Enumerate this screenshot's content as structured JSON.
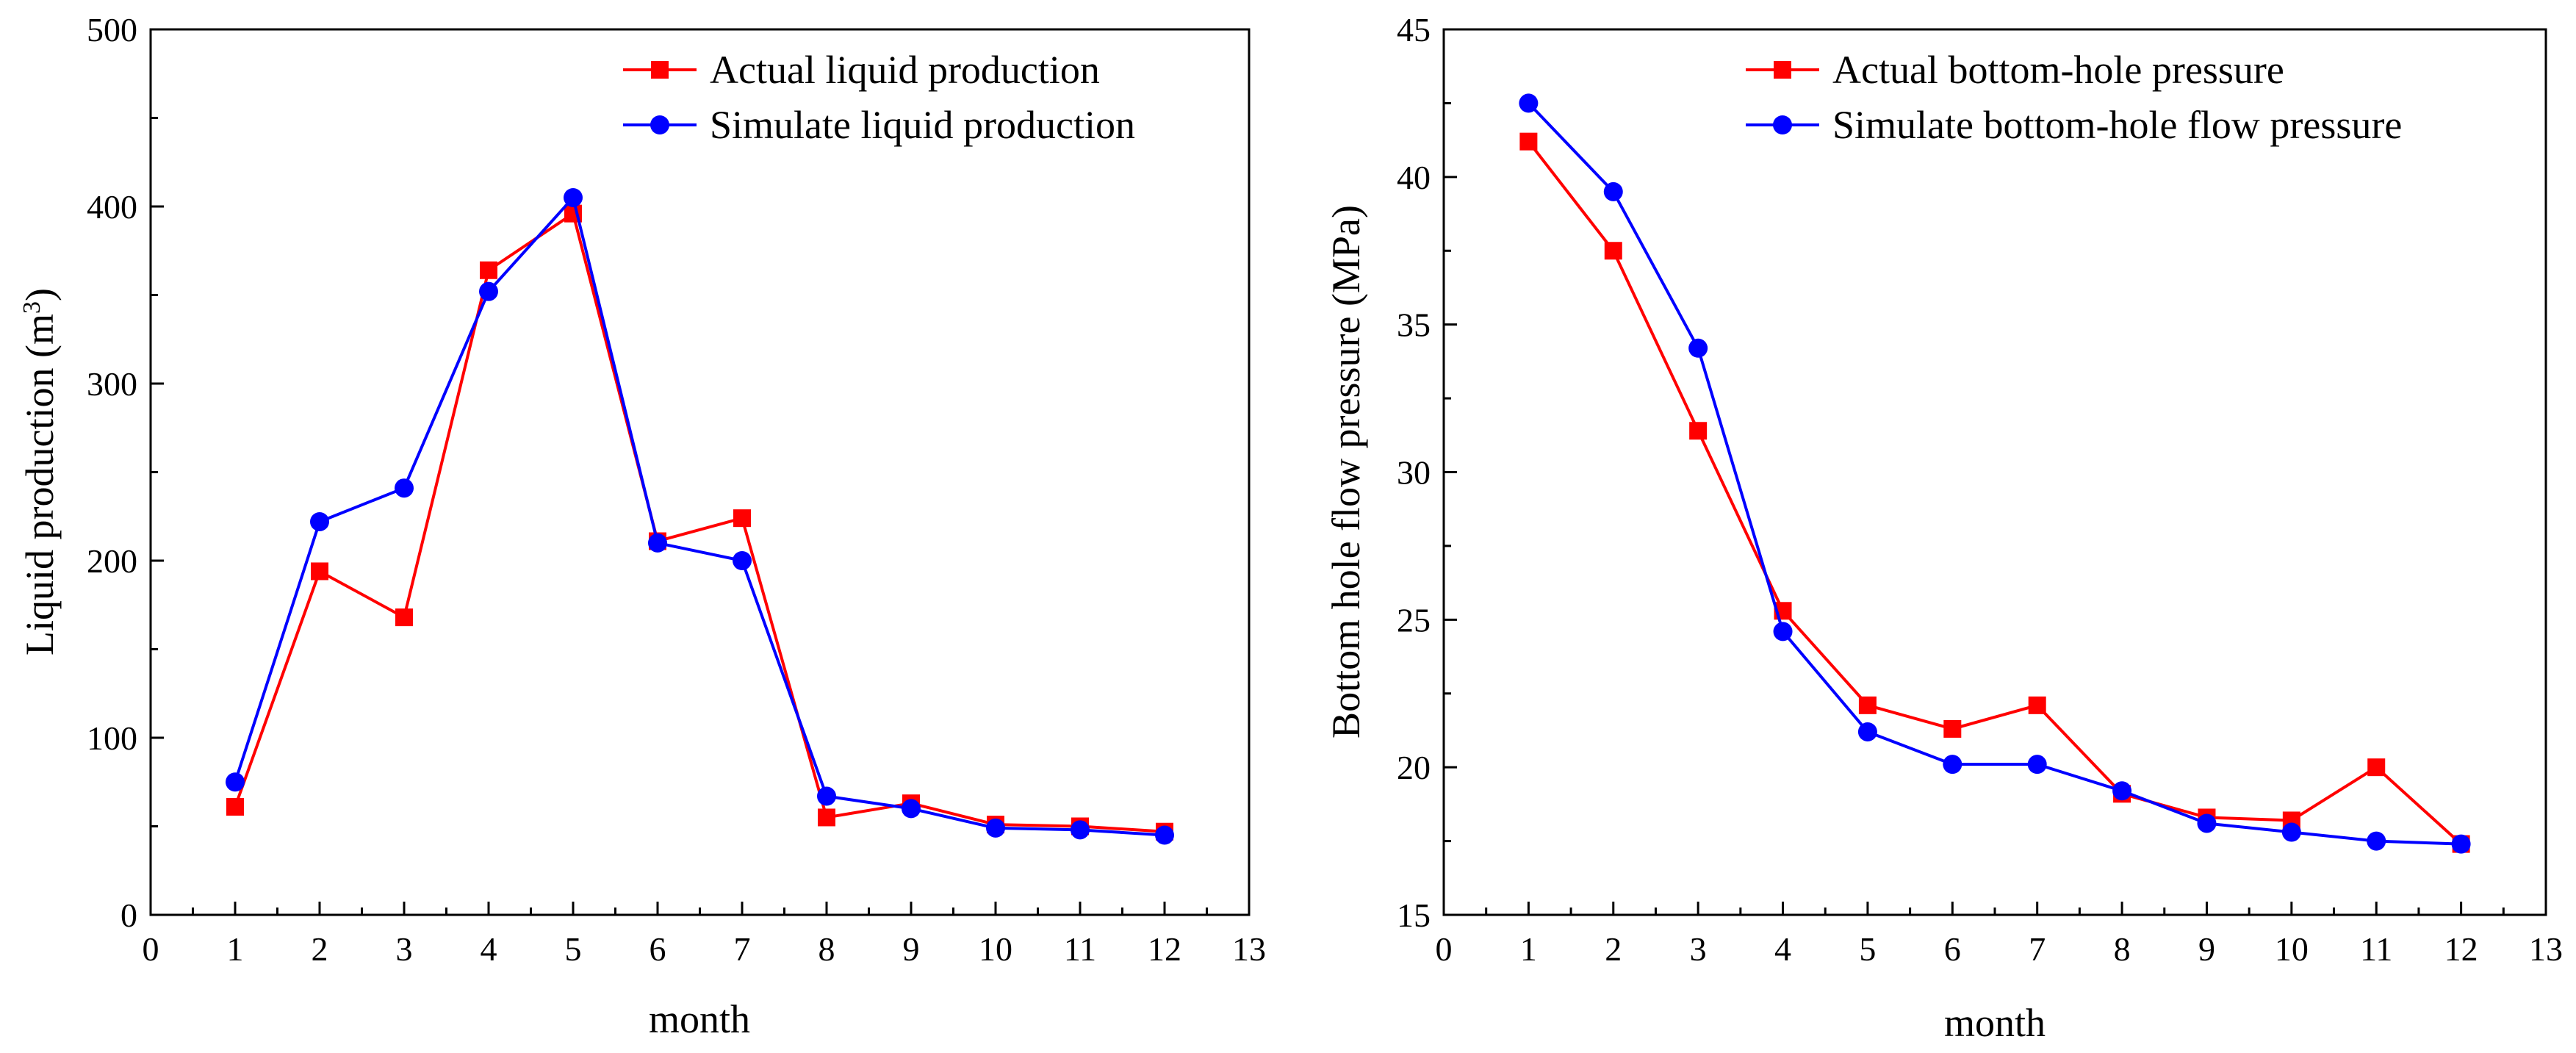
{
  "chart_data": [
    {
      "type": "line",
      "title": "",
      "xlabel": "month",
      "ylabel": "Liquid production (m",
      "ylabel_sup": "3",
      "ylabel_close": ")",
      "xlim": [
        0,
        13
      ],
      "ylim": [
        0,
        500
      ],
      "xticks": [
        0,
        1,
        2,
        3,
        4,
        5,
        6,
        7,
        8,
        9,
        10,
        11,
        12,
        13
      ],
      "yticks": [
        0,
        100,
        200,
        300,
        400,
        500
      ],
      "grid": false,
      "legend_position": "top-right",
      "x": [
        1,
        2,
        3,
        4,
        5,
        6,
        7,
        8,
        9,
        10,
        11,
        12
      ],
      "series": [
        {
          "name": "Actual liquid production",
          "color": "#ff0000",
          "marker": "square",
          "values": [
            61,
            194,
            168,
            364,
            396,
            211,
            224,
            55,
            63,
            51,
            50,
            47
          ]
        },
        {
          "name": "Simulate liquid production",
          "color": "#0000ff",
          "marker": "circle",
          "values": [
            75,
            222,
            241,
            352,
            405,
            210,
            200,
            67,
            60,
            49,
            48,
            45
          ]
        }
      ]
    },
    {
      "type": "line",
      "title": "",
      "xlabel": "month",
      "ylabel": "Bottom hole flow pressure (MPa)",
      "xlim": [
        0,
        13
      ],
      "ylim": [
        15,
        45
      ],
      "xticks": [
        0,
        1,
        2,
        3,
        4,
        5,
        6,
        7,
        8,
        9,
        10,
        11,
        12,
        13
      ],
      "yticks": [
        15,
        20,
        25,
        30,
        35,
        40,
        45
      ],
      "grid": false,
      "legend_position": "top-right",
      "x": [
        1,
        2,
        3,
        4,
        5,
        6,
        7,
        8,
        9,
        10,
        11,
        12
      ],
      "series": [
        {
          "name": "Actual bottom-hole pressure",
          "color": "#ff0000",
          "marker": "square",
          "values": [
            41.2,
            37.5,
            31.4,
            25.3,
            22.1,
            21.3,
            22.1,
            19.1,
            18.3,
            18.2,
            20.0,
            17.4
          ]
        },
        {
          "name": "Simulate bottom-hole flow pressure",
          "color": "#0000ff",
          "marker": "circle",
          "values": [
            42.5,
            39.5,
            34.2,
            24.6,
            21.2,
            20.1,
            20.1,
            19.2,
            18.1,
            17.8,
            17.5,
            17.4
          ]
        }
      ]
    }
  ]
}
